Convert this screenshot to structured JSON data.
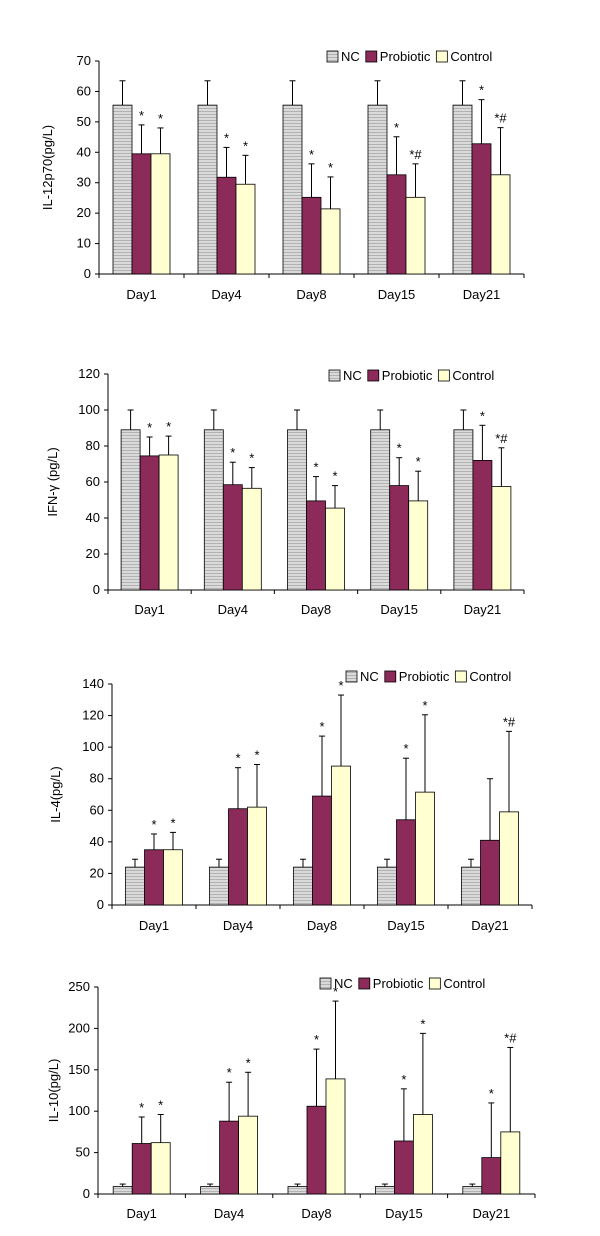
{
  "legend": {
    "items": [
      "NC",
      "Probiotic",
      "Control"
    ]
  },
  "colors": {
    "NC": "#d2d2d2",
    "Probiotic": "#8c2a5a",
    "Control": "#ffffd2",
    "stroke": "#000000",
    "error": "#000000"
  },
  "chart_data": [
    {
      "type": "bar",
      "ylabel": "IL-12p70(pg/L)",
      "ylim": [
        0,
        70
      ],
      "yticks": [
        "0",
        "10",
        "20",
        "30",
        "40",
        "50",
        "60",
        "70"
      ],
      "categories": [
        "Day1",
        "Day4",
        "Day8",
        "Day15",
        "Day21"
      ],
      "legend_position": "top-right",
      "series": [
        {
          "name": "NC",
          "values": [
            55.5,
            55.5,
            55.5,
            55.5,
            55.5
          ],
          "errors": [
            8,
            8,
            8,
            8,
            8
          ],
          "annotations": [
            "",
            "",
            "",
            "",
            ""
          ]
        },
        {
          "name": "Probiotic",
          "values": [
            39.5,
            31.8,
            25.2,
            32.6,
            42.8
          ],
          "errors": [
            9.5,
            9.8,
            11,
            12.5,
            14.5
          ],
          "annotations": [
            "*",
            "*",
            "*",
            "*",
            "*"
          ]
        },
        {
          "name": "Control",
          "values": [
            39.5,
            29.5,
            21.4,
            25.2,
            32.6
          ],
          "errors": [
            8.5,
            9.5,
            10.5,
            11,
            15.5
          ],
          "annotations": [
            "*",
            "*",
            "*",
            "*#",
            "*#"
          ]
        }
      ]
    },
    {
      "type": "bar",
      "ylabel": "IFN-γ (pg/L)",
      "ylim": [
        0,
        120
      ],
      "yticks": [
        "0",
        "20",
        "40",
        "60",
        "80",
        "100",
        "120"
      ],
      "categories": [
        "Day1",
        "Day4",
        "Day8",
        "Day15",
        "Day21"
      ],
      "legend_position": "top-right",
      "series": [
        {
          "name": "NC",
          "values": [
            89,
            89,
            89,
            89,
            89
          ],
          "errors": [
            11,
            11,
            11,
            11,
            11
          ],
          "annotations": [
            "",
            "",
            "",
            "",
            ""
          ]
        },
        {
          "name": "Probiotic",
          "values": [
            74.5,
            58.5,
            49.5,
            58,
            72
          ],
          "errors": [
            10.5,
            12.5,
            13.5,
            15.5,
            19.5
          ],
          "annotations": [
            "*",
            "*",
            "*",
            "*",
            "*"
          ]
        },
        {
          "name": "Control",
          "values": [
            75,
            56.5,
            45.5,
            49.5,
            57.5
          ],
          "errors": [
            10.5,
            11.5,
            12.5,
            16.5,
            21.5
          ],
          "annotations": [
            "*",
            "*",
            "*",
            "*",
            "*#"
          ]
        }
      ]
    },
    {
      "type": "bar",
      "ylabel": "IL-4(pg/L)",
      "ylim": [
        0,
        140
      ],
      "yticks": [
        "0",
        "20",
        "40",
        "60",
        "80",
        "100",
        "120",
        "140"
      ],
      "categories": [
        "Day1",
        "Day4",
        "Day8",
        "Day15",
        "Day21"
      ],
      "legend_position": "top-right",
      "series": [
        {
          "name": "NC",
          "values": [
            24,
            24,
            24,
            24,
            24
          ],
          "errors": [
            5,
            5,
            5,
            5,
            5
          ],
          "annotations": [
            "",
            "",
            "",
            "",
            ""
          ]
        },
        {
          "name": "Probiotic",
          "values": [
            35,
            61,
            69,
            54,
            41
          ],
          "errors": [
            10,
            26,
            38,
            39,
            39
          ],
          "annotations": [
            "*",
            "*",
            "*",
            "*",
            ""
          ]
        },
        {
          "name": "Control",
          "values": [
            35,
            62,
            88,
            71.5,
            59
          ],
          "errors": [
            11,
            27,
            45,
            49,
            51
          ],
          "annotations": [
            "*",
            "*",
            "*",
            "*",
            "*#"
          ]
        }
      ]
    },
    {
      "type": "bar",
      "ylabel": "IL-10(pg/L)",
      "ylim": [
        0,
        250
      ],
      "yticks": [
        "0",
        "50",
        "100",
        "150",
        "200",
        "250"
      ],
      "categories": [
        "Day1",
        "Day4",
        "Day8",
        "Day15",
        "Day21"
      ],
      "legend_position": "top-right",
      "series": [
        {
          "name": "NC",
          "values": [
            9,
            9,
            9,
            9,
            9
          ],
          "errors": [
            3,
            3,
            3,
            3,
            3
          ],
          "annotations": [
            "",
            "",
            "",
            "",
            ""
          ]
        },
        {
          "name": "Probiotic",
          "values": [
            61,
            88,
            106,
            64,
            44
          ],
          "errors": [
            32,
            47,
            69,
            63,
            66
          ],
          "annotations": [
            "*",
            "*",
            "*",
            "*",
            "*"
          ]
        },
        {
          "name": "Control",
          "values": [
            62,
            94,
            139,
            96,
            75
          ],
          "errors": [
            34,
            53,
            94,
            98,
            102
          ],
          "annotations": [
            "*",
            "*",
            "*",
            "*",
            "*#"
          ]
        }
      ]
    }
  ]
}
